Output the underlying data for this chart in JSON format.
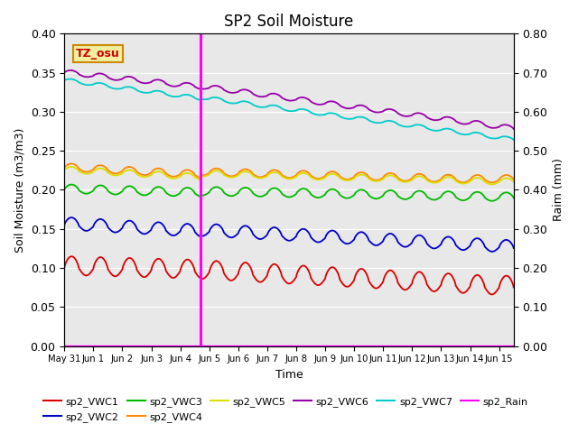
{
  "title": "SP2 Soil Moisture",
  "xlabel": "Time",
  "ylabel_left": "Soil Moisture (m3/m3)",
  "ylabel_right": "Raim (mm)",
  "annotation_text": "TZ_osu",
  "annotation_color": "#cc0000",
  "annotation_bg": "#f0f0a0",
  "annotation_border": "#cc8800",
  "ylim_left": [
    0.0,
    0.4
  ],
  "ylim_right": [
    0.0,
    0.8
  ],
  "yticks_left": [
    0.0,
    0.05,
    0.1,
    0.15,
    0.2,
    0.25,
    0.3,
    0.35,
    0.4
  ],
  "yticks_right": [
    0.0,
    0.1,
    0.2,
    0.3,
    0.4,
    0.5,
    0.6,
    0.7,
    0.8
  ],
  "xtick_labels": [
    "May 31",
    "Jun 1",
    "Jun 2",
    "Jun 3",
    "Jun 4",
    "Jun 5",
    "Jun 6",
    "Jun 7",
    "Jun 8",
    "Jun 9",
    "Jun 10",
    "Jun 11",
    "Jun 12",
    "Jun 13",
    "Jun 14",
    "Jun 15"
  ],
  "vertical_line_x": 4.7,
  "vertical_line_color": "magenta",
  "bg_color": "#e8e8e8",
  "series_colors": {
    "sp2_VWC1": "#dd0000",
    "sp2_VWC2": "#0000cc",
    "sp2_VWC3": "#00bb00",
    "sp2_VWC4": "#ff8800",
    "sp2_VWC5": "#dddd00",
    "sp2_VWC6": "#9900aa",
    "sp2_VWC7": "#00cccc",
    "sp2_Rain": "#ff00ff"
  }
}
